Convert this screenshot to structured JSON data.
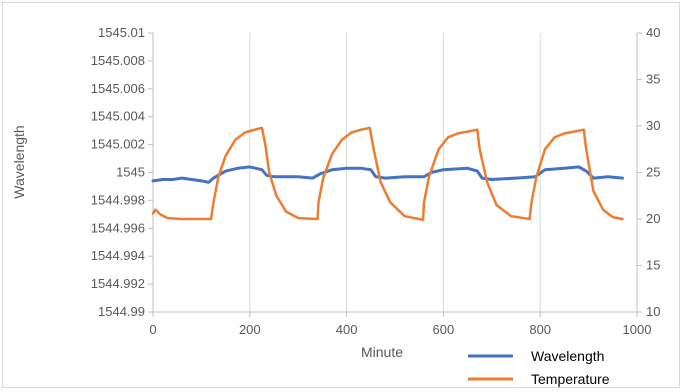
{
  "chart_data": {
    "type": "line",
    "title": "",
    "xlabel": "Minute",
    "ylabel": "Wavelength",
    "y2label": "",
    "xlim": [
      0,
      1000
    ],
    "xticks": [
      "0",
      "200",
      "400",
      "600",
      "800",
      "1000"
    ],
    "ylim": [
      1544.99,
      1545.01
    ],
    "yticks": [
      "1544.99",
      "1544.992",
      "1544.994",
      "1544.996",
      "1544.998",
      "1545",
      "1545.002",
      "1545.004",
      "1545.006",
      "1545.008",
      "1545.01"
    ],
    "y2lim": [
      10,
      40
    ],
    "y2ticks": [
      "10",
      "15",
      "20",
      "25",
      "30",
      "35",
      "40"
    ],
    "grid": "vertical",
    "legend_position": "bottom-right",
    "series": [
      {
        "name": "Wavelength",
        "axis": "left",
        "color": "#4472C4",
        "x": [
          0,
          20,
          40,
          60,
          80,
          100,
          115,
          125,
          150,
          175,
          200,
          225,
          235,
          250,
          300,
          330,
          345,
          370,
          400,
          430,
          450,
          460,
          480,
          520,
          560,
          575,
          600,
          650,
          670,
          680,
          700,
          750,
          790,
          810,
          850,
          880,
          895,
          910,
          940,
          970
        ],
        "values": [
          1544.9994,
          1544.9995,
          1544.9995,
          1544.9996,
          1544.9995,
          1544.9994,
          1544.9993,
          1544.9996,
          1545.0001,
          1545.0003,
          1545.0004,
          1545.0002,
          1544.9998,
          1544.9997,
          1544.9997,
          1544.9996,
          1544.9999,
          1545.0002,
          1545.0003,
          1545.0003,
          1545.0002,
          1544.9997,
          1544.9996,
          1544.9997,
          1544.9997,
          1545.0,
          1545.0002,
          1545.0003,
          1545.0001,
          1544.9996,
          1544.9995,
          1544.9996,
          1544.9997,
          1545.0002,
          1545.0003,
          1545.0004,
          1545.0001,
          1544.9996,
          1544.9997,
          1544.9996
        ]
      },
      {
        "name": "Temperature",
        "axis": "right",
        "color": "#ED7D31",
        "x": [
          0,
          5,
          15,
          30,
          60,
          100,
          120,
          125,
          135,
          150,
          170,
          190,
          210,
          225,
          232,
          240,
          255,
          275,
          300,
          340,
          342,
          352,
          370,
          390,
          410,
          430,
          448,
          456,
          470,
          490,
          520,
          558,
          560,
          570,
          590,
          610,
          630,
          650,
          670,
          675,
          690,
          710,
          740,
          778,
          782,
          792,
          810,
          830,
          850,
          870,
          890,
          895,
          910,
          930,
          950,
          970
        ],
        "values": [
          20.6,
          21.0,
          20.5,
          20.1,
          20.0,
          20.0,
          20.0,
          21.8,
          24.5,
          26.8,
          28.5,
          29.3,
          29.6,
          29.8,
          28.0,
          25.0,
          22.5,
          20.8,
          20.1,
          20.0,
          21.8,
          24.5,
          27.0,
          28.5,
          29.3,
          29.6,
          29.8,
          27.5,
          24.0,
          21.8,
          20.3,
          19.9,
          21.8,
          24.5,
          27.5,
          28.8,
          29.2,
          29.4,
          29.6,
          27.5,
          24.0,
          21.5,
          20.3,
          20.0,
          21.8,
          24.5,
          27.5,
          28.8,
          29.2,
          29.4,
          29.6,
          27.5,
          23.0,
          21.0,
          20.2,
          20.0
        ]
      }
    ]
  }
}
